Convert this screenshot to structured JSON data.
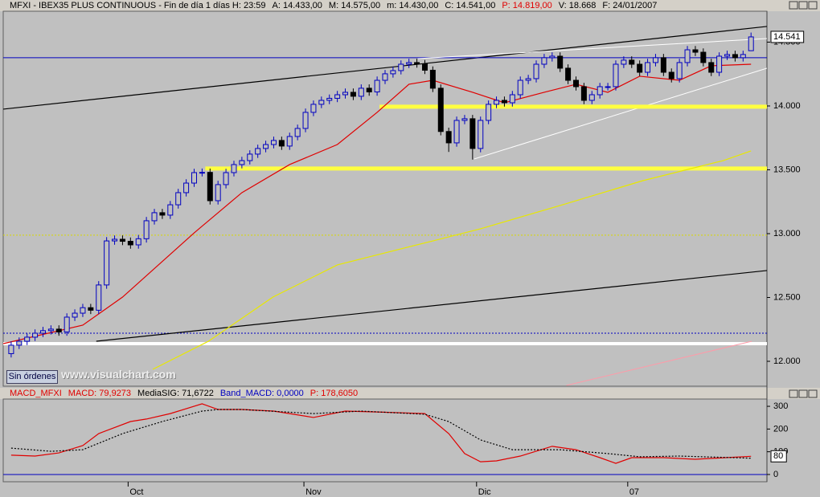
{
  "status_button": "Sin órdenes",
  "watermark": "www.visualchart.com",
  "chart_data": [
    {
      "type": "candlestick",
      "header": [
        {
          "text": "MFXI - IBEX35 PLUS CONTINUOUS - Fin de día 1 días  H: 23:59",
          "color": "#000000"
        },
        {
          "text": "A: 14.433,00",
          "color": "#000000"
        },
        {
          "text": "M: 14.575,00",
          "color": "#000000"
        },
        {
          "text": "m: 14.430,00",
          "color": "#000000"
        },
        {
          "text": "C: 14.541,00",
          "color": "#000000"
        },
        {
          "text": "P: 14.819,00",
          "color": "#e00000"
        },
        {
          "text": "V: 18.668",
          "color": "#000000"
        },
        {
          "text": "F: 24/01/2007",
          "color": "#000000"
        }
      ],
      "xlim": [
        -1,
        95
      ],
      "ylim": [
        11805,
        14742
      ],
      "yticks": [
        {
          "value": 12000,
          "label": "12.000"
        },
        {
          "value": 12500,
          "label": "12.500"
        },
        {
          "value": 13000,
          "label": "13.000"
        },
        {
          "value": 13500,
          "label": "13.500"
        },
        {
          "value": 14000,
          "label": "14.000"
        },
        {
          "value": 14500,
          "label": "14.500"
        }
      ],
      "up_color": "#0000c0",
      "down_color": "#000000",
      "open": [
        12060,
        12126,
        12157,
        12189,
        12220,
        12240,
        12252,
        12230,
        12346,
        12377,
        12420,
        12400,
        12598,
        12943,
        12956,
        12940,
        12912,
        12960,
        13101,
        13164,
        13145,
        13226,
        13321,
        13396,
        13478,
        13480,
        13258,
        13384,
        13478,
        13541,
        13572,
        13623,
        13667,
        13698,
        13730,
        13686,
        13761,
        13824,
        13950,
        14013,
        14044,
        14060,
        14088,
        14107,
        14076,
        14139,
        14110,
        14201,
        14252,
        14277,
        14327,
        14340,
        14330,
        14280,
        14139,
        13800,
        13711,
        13887,
        13900,
        13667,
        13887,
        14013,
        14044,
        14025,
        14088,
        14201,
        14214,
        14327,
        14378,
        14390,
        14296,
        14201,
        14151,
        14044,
        14088,
        14151,
        14151,
        14327,
        14359,
        14327,
        14264,
        14340,
        14378,
        14264,
        14214,
        14340,
        14440,
        14421,
        14340,
        14264,
        14390,
        14403,
        14378,
        14433
      ],
      "high": [
        12156,
        12187,
        12219,
        12250,
        12270,
        12282,
        12282,
        12376,
        12407,
        12450,
        12450,
        12628,
        12973,
        12986,
        12986,
        12970,
        12990,
        13131,
        13194,
        13194,
        13256,
        13351,
        13426,
        13508,
        13510,
        13510,
        13414,
        13508,
        13571,
        13602,
        13653,
        13697,
        13728,
        13760,
        13760,
        13791,
        13854,
        13980,
        14043,
        14074,
        14090,
        14118,
        14137,
        14137,
        14169,
        14169,
        14231,
        14282,
        14307,
        14357,
        14370,
        14370,
        14360,
        14310,
        14169,
        13830,
        13917,
        13930,
        13930,
        13917,
        14043,
        14074,
        14074,
        14118,
        14231,
        14244,
        14357,
        14408,
        14420,
        14420,
        14326,
        14231,
        14181,
        14118,
        14181,
        14181,
        14357,
        14389,
        14389,
        14357,
        14370,
        14408,
        14408,
        14294,
        14370,
        14470,
        14470,
        14451,
        14370,
        14420,
        14433,
        14433,
        14433,
        14575
      ],
      "low": [
        12030,
        12096,
        12127,
        12159,
        12190,
        12210,
        12200,
        12200,
        12316,
        12347,
        12370,
        12370,
        12568,
        12913,
        12910,
        12882,
        12882,
        12930,
        13071,
        13115,
        13115,
        13196,
        13291,
        13366,
        13448,
        13228,
        13228,
        13354,
        13448,
        13511,
        13542,
        13593,
        13637,
        13668,
        13656,
        13656,
        13731,
        13794,
        13920,
        13983,
        14014,
        14030,
        14058,
        14046,
        14046,
        14080,
        14080,
        14171,
        14222,
        14247,
        14297,
        14300,
        14250,
        14109,
        13770,
        13640,
        13681,
        13857,
        13580,
        13637,
        13857,
        13983,
        13995,
        13995,
        14058,
        14171,
        14184,
        14297,
        14348,
        14266,
        14171,
        14121,
        14014,
        14014,
        14058,
        14121,
        14121,
        14297,
        14297,
        14234,
        14234,
        14310,
        14234,
        14184,
        14184,
        14310,
        14391,
        14310,
        14234,
        14234,
        14360,
        14348,
        14348,
        14430
      ],
      "close": [
        12126,
        12157,
        12189,
        12220,
        12240,
        12252,
        12230,
        12346,
        12377,
        12420,
        12400,
        12598,
        12943,
        12956,
        12940,
        12912,
        12960,
        13101,
        13164,
        13145,
        13226,
        13321,
        13396,
        13478,
        13480,
        13258,
        13384,
        13478,
        13541,
        13572,
        13623,
        13667,
        13698,
        13730,
        13686,
        13761,
        13824,
        13950,
        14013,
        14044,
        14060,
        14088,
        14107,
        14076,
        14139,
        14110,
        14201,
        14252,
        14277,
        14327,
        14340,
        14330,
        14280,
        14139,
        13800,
        13711,
        13887,
        13900,
        13667,
        13887,
        14013,
        14044,
        14025,
        14088,
        14201,
        14214,
        14327,
        14378,
        14390,
        14296,
        14201,
        14151,
        14044,
        14088,
        14151,
        14151,
        14327,
        14359,
        14327,
        14264,
        14340,
        14378,
        14264,
        14214,
        14340,
        14440,
        14421,
        14340,
        14264,
        14390,
        14403,
        14378,
        14403,
        14541
      ],
      "series": [
        {
          "color": "#e00000",
          "x": [
            -1,
            9,
            14,
            23,
            29,
            35,
            41,
            46,
            50,
            53,
            58,
            62,
            67,
            71,
            75,
            79,
            84,
            88,
            93
          ],
          "values": [
            12138,
            12283,
            12503,
            13006,
            13321,
            13541,
            13698,
            13950,
            14170,
            14201,
            14107,
            14025,
            14107,
            14170,
            14107,
            14233,
            14201,
            14315,
            14327
          ]
        },
        {
          "color": "#e8e800",
          "x": [
            17.8,
            24.8,
            32.9,
            41,
            49,
            53,
            59,
            69.3,
            79.4,
            89.5,
            93
          ],
          "values": [
            11937,
            12157,
            12503,
            12755,
            12881,
            12943,
            13038,
            13226,
            13415,
            13572,
            13648
          ]
        }
      ],
      "trendlines": [
        {
          "color": "#000000",
          "width": 1.2,
          "x": [
            -1,
            95
          ],
          "values": [
            13975,
            14623
          ]
        },
        {
          "color": "#0000c0",
          "width": 1,
          "x": [
            -1,
            95
          ],
          "values": [
            14378,
            14378
          ]
        },
        {
          "color": "#ffffff",
          "width": 1,
          "x": [
            51.1,
            95
          ],
          "values": [
            14371,
            14528
          ]
        },
        {
          "color": "#ffffff",
          "width": 1,
          "x": [
            58.2,
            95
          ],
          "values": [
            13585,
            14296
          ]
        },
        {
          "color": "#ffff40",
          "width": 5,
          "x": [
            46.3,
            95
          ],
          "values": [
            13994,
            13994
          ]
        },
        {
          "color": "#ffff40",
          "width": 5,
          "x": [
            24.4,
            95
          ],
          "values": [
            13510,
            13510
          ]
        },
        {
          "color": "#d8d800",
          "width": 1,
          "dash": true,
          "x": [
            -1,
            95
          ],
          "values": [
            12988,
            12988
          ]
        },
        {
          "color": "#0000c0",
          "width": 1,
          "dash": true,
          "x": [
            -1,
            95
          ],
          "values": [
            12220,
            12220
          ]
        },
        {
          "color": "#ffffff",
          "width": 4,
          "x": [
            -1,
            95
          ],
          "values": [
            12138,
            12138
          ]
        },
        {
          "color": "#000000",
          "width": 1.2,
          "x": [
            10.7,
            95
          ],
          "values": [
            12157,
            12711
          ]
        },
        {
          "color": "#ff9aa8",
          "width": 1,
          "x": [
            69.8,
            93.1
          ],
          "values": [
            11811,
            12157
          ]
        }
      ],
      "last_label": {
        "value": 14541,
        "label": "14.541"
      }
    },
    {
      "type": "line",
      "header": [
        {
          "text": "MACD_MFXI",
          "color": "#e00000"
        },
        {
          "text": "MACD: 79,9273",
          "color": "#e00000"
        },
        {
          "text": "MediaSIG: 71,6722",
          "color": "#000000"
        },
        {
          "text": "Band_MACD: 0,0000",
          "color": "#0000c0"
        },
        {
          "text": "P: 178,6050",
          "color": "#e00000"
        }
      ],
      "xlim": [
        -1,
        95
      ],
      "ylim": [
        -32,
        332
      ],
      "yticks": [
        0,
        100,
        200,
        300
      ],
      "xticks": [
        {
          "value": 14.7,
          "label": "Oct"
        },
        {
          "value": 36.8,
          "label": "Nov"
        },
        {
          "value": 58.5,
          "label": "Dic"
        },
        {
          "value": 77.5,
          "label": "07"
        }
      ],
      "series": [
        {
          "color": "#e00000",
          "x": [
            0,
            3,
            6,
            9,
            11,
            15,
            17,
            20,
            24,
            26,
            29,
            33,
            38,
            42,
            46,
            52,
            55,
            57,
            59,
            61,
            64,
            68,
            71,
            74,
            76,
            78,
            82,
            86,
            93
          ],
          "values": [
            85,
            81,
            95,
            127,
            180,
            233,
            244,
            268,
            311,
            286,
            286,
            279,
            251,
            279,
            275,
            268,
            180,
            92,
            56,
            60,
            81,
            124,
            109,
            74,
            49,
            74,
            74,
            67,
            79.9273
          ]
        },
        {
          "color": "#000000",
          "dash": true,
          "x": [
            0,
            5,
            9,
            14,
            19,
            24,
            26,
            29,
            38,
            44,
            52,
            55,
            59,
            63,
            69,
            75,
            79,
            84,
            93
          ],
          "values": [
            116,
            102,
            109,
            180,
            233,
            279,
            286,
            286,
            268,
            279,
            265,
            233,
            152,
            109,
            109,
            92,
            78,
            81,
            71.6722
          ]
        }
      ],
      "trendlines": [
        {
          "color": "#0000c0",
          "width": 1,
          "x": [
            -1,
            95
          ],
          "values": [
            0,
            0
          ]
        }
      ],
      "last_label": {
        "value": 80,
        "label": "80"
      }
    }
  ]
}
